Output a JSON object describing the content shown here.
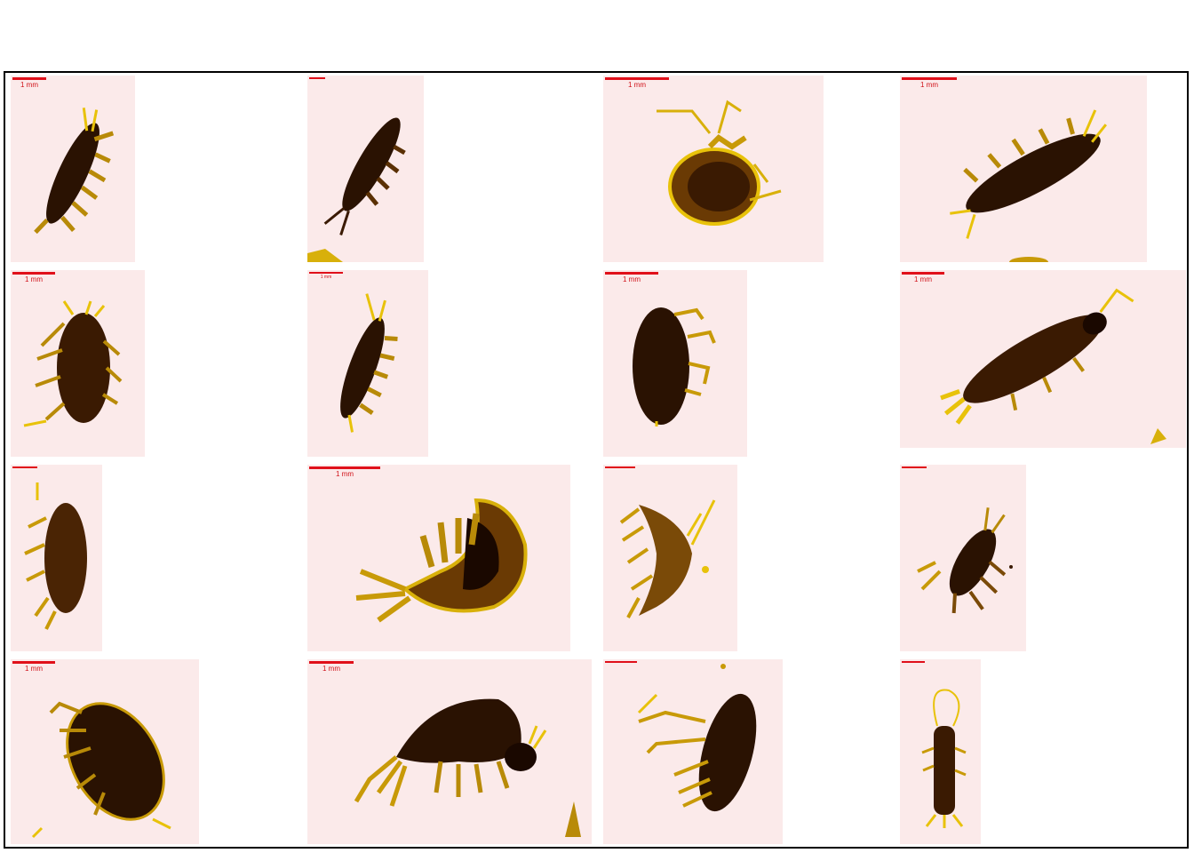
{
  "colors": {
    "background": "#fbeaea",
    "specimen_dark": "#2a1202",
    "specimen_mid": "#7a4a08",
    "specimen_light": "#e8c20a",
    "scale_bar": "#e0101a"
  },
  "gallery": {
    "tiles": [
      {
        "scale_label": "1 mm",
        "specimen": "amphipod"
      },
      {
        "scale_label": "",
        "specimen": "amphipod"
      },
      {
        "scale_label": "1 mm",
        "specimen": "amphipod"
      },
      {
        "scale_label": "1 mm",
        "specimen": "amphipod"
      },
      {
        "scale_label": "1 mm",
        "specimen": "amphipod"
      },
      {
        "scale_label": "1 mm",
        "specimen": "amphipod"
      },
      {
        "scale_label": "1 mm",
        "specimen": "amphipod"
      },
      {
        "scale_label": "1 mm",
        "specimen": "amphipod"
      },
      {
        "scale_label": "",
        "specimen": "amphipod"
      },
      {
        "scale_label": "1 mm",
        "specimen": "amphipod"
      },
      {
        "scale_label": "",
        "specimen": "amphipod"
      },
      {
        "scale_label": "",
        "specimen": "amphipod"
      },
      {
        "scale_label": "1 mm",
        "specimen": "amphipod"
      },
      {
        "scale_label": "1 mm",
        "specimen": "amphipod"
      },
      {
        "scale_label": "",
        "specimen": "amphipod"
      },
      {
        "scale_label": "",
        "specimen": "amphipod"
      }
    ]
  }
}
